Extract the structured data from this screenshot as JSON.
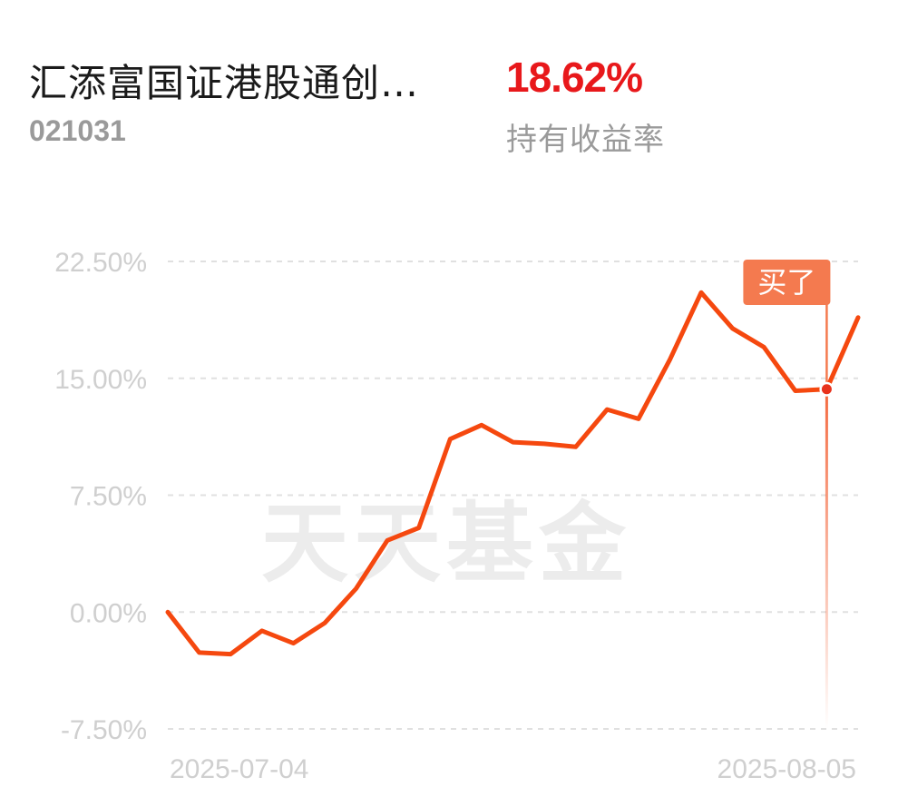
{
  "header": {
    "fund_name": "汇添富国证港股通创…",
    "fund_code": "021031",
    "return_value": "18.62%",
    "return_label": "持有收益率"
  },
  "watermark": "天天基金",
  "marker": {
    "label": "买了",
    "color": "#f47a4f"
  },
  "colors": {
    "line": "#f5480f",
    "positive": "#e8181b",
    "grid": "#e0e0e0",
    "label": "#cfcfcf"
  },
  "chart_data": {
    "type": "line",
    "y_tick_labels": [
      "22.50%",
      "15.00%",
      "7.50%",
      "0.00%",
      "-7.50%"
    ],
    "y_ticks": [
      22.5,
      15,
      7.5,
      0,
      -7.5
    ],
    "ylim": [
      -7.5,
      22.5
    ],
    "x_tick_labels": [
      "2025-07-04",
      "2025-08-05"
    ],
    "grid": true,
    "series": [
      {
        "values": [
          0.0,
          -2.6,
          -2.7,
          -1.2,
          -2.0,
          -0.7,
          1.5,
          4.6,
          5.4,
          11.1,
          12.0,
          10.9,
          10.8,
          10.6,
          13.0,
          12.4,
          16.2,
          20.5,
          18.2,
          17.0,
          14.2,
          14.3,
          18.9
        ]
      }
    ],
    "buy_point": {
      "index": 21,
      "value": 14.3,
      "label": "买了"
    }
  }
}
